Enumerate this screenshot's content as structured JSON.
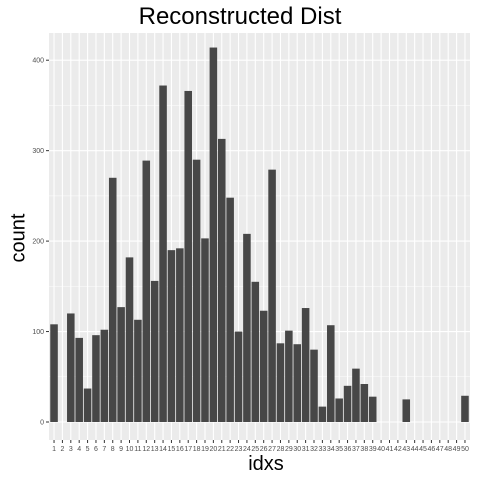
{
  "chart_data": {
    "type": "bar",
    "title": "Reconstructed Dist",
    "xlabel": "idxs",
    "ylabel": "count",
    "categories": [
      "1",
      "2",
      "3",
      "4",
      "5",
      "6",
      "7",
      "8",
      "9",
      "10",
      "11",
      "12",
      "13",
      "14",
      "15",
      "16",
      "17",
      "18",
      "19",
      "20",
      "21",
      "22",
      "23",
      "24",
      "25",
      "26",
      "27",
      "28",
      "29",
      "30",
      "31",
      "32",
      "33",
      "34",
      "35",
      "36",
      "37",
      "38",
      "39",
      "40",
      "41",
      "42",
      "43",
      "44",
      "45",
      "46",
      "47",
      "48",
      "49",
      "50"
    ],
    "values": [
      108,
      0,
      120,
      93,
      37,
      96,
      102,
      270,
      127,
      182,
      113,
      289,
      156,
      372,
      190,
      192,
      366,
      290,
      203,
      414,
      313,
      248,
      100,
      208,
      155,
      123,
      279,
      87,
      101,
      86,
      126,
      80,
      17,
      107,
      26,
      40,
      59,
      42,
      28,
      0,
      0,
      0,
      25,
      0,
      0,
      0,
      0,
      0,
      0,
      29
    ],
    "ylim": [
      0,
      430
    ],
    "yticks": [
      0,
      100,
      200,
      300,
      400
    ],
    "grid": true,
    "bar_color": "#474747",
    "panel_color": "#ebebeb",
    "grid_color": "#ffffff"
  }
}
